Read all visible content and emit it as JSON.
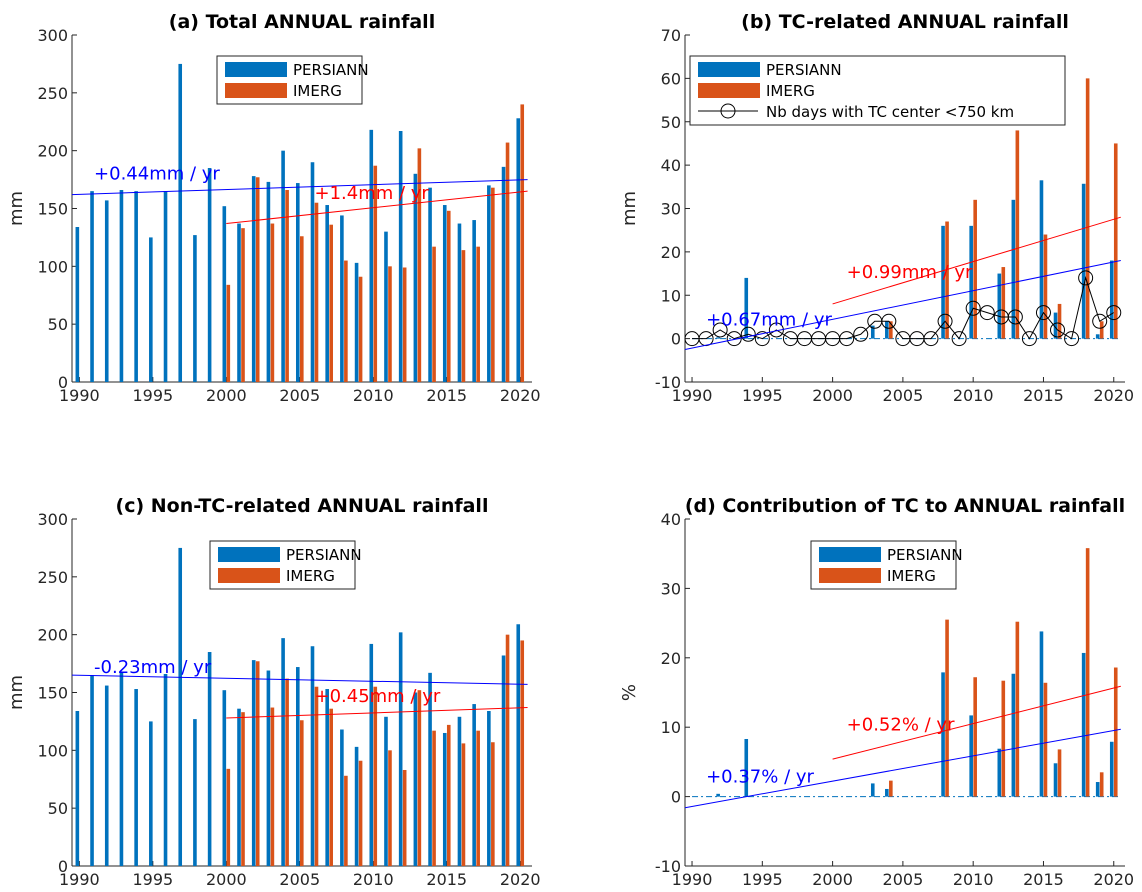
{
  "colors": {
    "persiann": "#0072bd",
    "imerg": "#d95319",
    "trend_persiann": "#0000ff",
    "trend_imerg": "#ff0000",
    "tc_days": "#000000"
  },
  "chart_data": [
    {
      "id": "a",
      "type": "bar",
      "title": "(a) Total ANNUAL rainfall",
      "ylabel": "mm",
      "xlim": [
        1989.5,
        2020.8
      ],
      "ylim": [
        0,
        300
      ],
      "xticks": [
        1990,
        1995,
        2000,
        2005,
        2010,
        2015,
        2020
      ],
      "yticks": [
        0,
        50,
        100,
        150,
        200,
        250,
        300
      ],
      "legend_position": "top-center",
      "legend": [
        "PERSIANN",
        "IMERG"
      ],
      "series": [
        {
          "name": "PERSIANN",
          "x": [
            1990,
            1991,
            1992,
            1993,
            1994,
            1995,
            1996,
            1997,
            1998,
            1999,
            2000,
            2001,
            2002,
            2003,
            2004,
            2005,
            2006,
            2007,
            2008,
            2009,
            2010,
            2011,
            2012,
            2013,
            2014,
            2015,
            2016,
            2017,
            2018,
            2019,
            2020
          ],
          "values": [
            134,
            165,
            157,
            166,
            165,
            125,
            165,
            275,
            127,
            185,
            152,
            137,
            178,
            173,
            200,
            172,
            190,
            153,
            144,
            103,
            218,
            130,
            217,
            180,
            168,
            153,
            137,
            140,
            170,
            186,
            228
          ]
        },
        {
          "name": "IMERG",
          "x": [
            2000,
            2001,
            2002,
            2003,
            2004,
            2005,
            2006,
            2007,
            2008,
            2009,
            2010,
            2011,
            2012,
            2013,
            2014,
            2015,
            2016,
            2017,
            2018,
            2019,
            2020
          ],
          "values": [
            84,
            133,
            177,
            137,
            166,
            126,
            155,
            136,
            105,
            91,
            187,
            100,
            99,
            202,
            117,
            148,
            114,
            117,
            168,
            207,
            240
          ]
        }
      ],
      "trends": [
        {
          "label": "+0.44mm / yr",
          "series": "PERSIANN",
          "x": [
            1989.5,
            2020.5
          ],
          "y": [
            162,
            175
          ],
          "label_x": 1991,
          "label_y": 175
        },
        {
          "label": "+1.4mm / yr",
          "series": "IMERG",
          "x": [
            2000,
            2020.5
          ],
          "y": [
            137,
            165
          ],
          "label_x": 2006,
          "label_y": 158
        }
      ]
    },
    {
      "id": "b",
      "type": "bar",
      "title": "(b) TC-related ANNUAL rainfall",
      "ylabel": "mm",
      "xlim": [
        1989.5,
        2020.8
      ],
      "ylim": [
        -10,
        70
      ],
      "xticks": [
        1990,
        1995,
        2000,
        2005,
        2010,
        2015,
        2020
      ],
      "yticks": [
        -10,
        0,
        10,
        20,
        30,
        40,
        50,
        60,
        70
      ],
      "legend_position": "top-left",
      "legend": [
        "PERSIANN",
        "IMERG",
        "Nb days with TC center <750 km"
      ],
      "series": [
        {
          "name": "PERSIANN",
          "x": [
            1990,
            1991,
            1992,
            1993,
            1994,
            1995,
            1996,
            1997,
            1998,
            1999,
            2000,
            2001,
            2002,
            2003,
            2004,
            2005,
            2006,
            2007,
            2008,
            2009,
            2010,
            2011,
            2012,
            2013,
            2014,
            2015,
            2016,
            2017,
            2018,
            2019,
            2020
          ],
          "values": [
            0,
            0,
            0.3,
            0,
            14,
            0,
            0,
            0,
            0,
            0,
            0,
            0,
            0,
            3,
            4,
            0,
            0,
            0,
            26,
            0,
            26,
            0,
            15,
            32,
            0,
            36.5,
            6,
            0,
            35.7,
            1,
            18
          ]
        },
        {
          "name": "IMERG",
          "x": [
            2000,
            2001,
            2002,
            2003,
            2004,
            2005,
            2006,
            2007,
            2008,
            2009,
            2010,
            2011,
            2012,
            2013,
            2014,
            2015,
            2016,
            2017,
            2018,
            2019,
            2020
          ],
          "values": [
            0,
            0,
            0,
            0,
            4,
            0,
            0,
            0,
            27,
            0,
            32,
            0,
            16.5,
            48,
            0,
            24,
            8,
            0,
            60,
            4,
            45
          ]
        },
        {
          "name": "Nb days with TC center <750 km",
          "kind": "line-marker",
          "x": [
            1990,
            1991,
            1992,
            1993,
            1994,
            1995,
            1996,
            1997,
            1998,
            1999,
            2000,
            2001,
            2002,
            2003,
            2004,
            2005,
            2006,
            2007,
            2008,
            2009,
            2010,
            2011,
            2012,
            2013,
            2014,
            2015,
            2016,
            2017,
            2018,
            2019,
            2020
          ],
          "values": [
            0,
            0,
            2,
            0,
            1,
            0,
            2,
            0,
            0,
            0,
            0,
            0,
            1,
            4,
            4,
            0,
            0,
            0,
            4,
            0,
            7,
            6,
            5,
            5,
            0,
            6,
            2,
            0,
            14,
            4,
            6
          ]
        }
      ],
      "trends": [
        {
          "label": "+0.67mm / yr",
          "series": "PERSIANN",
          "x": [
            1989.5,
            2020.5
          ],
          "y": [
            -2.5,
            18
          ],
          "label_x": 1991,
          "label_y": 3
        },
        {
          "label": "+0.99mm / yr",
          "series": "IMERG",
          "x": [
            2000,
            2020.5
          ],
          "y": [
            8,
            28
          ],
          "label_x": 2001,
          "label_y": 14
        }
      ]
    },
    {
      "id": "c",
      "type": "bar",
      "title": "(c) Non-TC-related ANNUAL rainfall",
      "ylabel": "mm",
      "xlim": [
        1989.5,
        2020.8
      ],
      "ylim": [
        0,
        300
      ],
      "xticks": [
        1990,
        1995,
        2000,
        2005,
        2010,
        2015,
        2020
      ],
      "yticks": [
        0,
        50,
        100,
        150,
        200,
        250,
        300
      ],
      "legend_position": "top-center",
      "legend": [
        "PERSIANN",
        "IMERG"
      ],
      "series": [
        {
          "name": "PERSIANN",
          "x": [
            1990,
            1991,
            1992,
            1993,
            1994,
            1995,
            1996,
            1997,
            1998,
            1999,
            2000,
            2001,
            2002,
            2003,
            2004,
            2005,
            2006,
            2007,
            2008,
            2009,
            2010,
            2011,
            2012,
            2013,
            2014,
            2015,
            2016,
            2017,
            2018,
            2019,
            2020
          ],
          "values": [
            134,
            165,
            156,
            167,
            153,
            125,
            166,
            275,
            127,
            185,
            152,
            136,
            178,
            169,
            197,
            172,
            190,
            153,
            118,
            103,
            192,
            129,
            202,
            150,
            167,
            115,
            129,
            140,
            134,
            182,
            209
          ]
        },
        {
          "name": "IMERG",
          "x": [
            2000,
            2001,
            2002,
            2003,
            2004,
            2005,
            2006,
            2007,
            2008,
            2009,
            2010,
            2011,
            2012,
            2013,
            2014,
            2015,
            2016,
            2017,
            2018,
            2019,
            2020
          ],
          "values": [
            84,
            133,
            177,
            137,
            162,
            126,
            155,
            136,
            78,
            91,
            155,
            100,
            83,
            152,
            117,
            122,
            106,
            117,
            107,
            200,
            195
          ]
        }
      ],
      "trends": [
        {
          "label": "-0.23mm / yr",
          "series": "PERSIANN",
          "x": [
            1989.5,
            2020.5
          ],
          "y": [
            165,
            157
          ],
          "label_x": 1991,
          "label_y": 167
        },
        {
          "label": "+0.45mm / yr",
          "series": "IMERG",
          "x": [
            2000,
            2020.5
          ],
          "y": [
            128,
            137
          ],
          "label_x": 2006,
          "label_y": 142
        }
      ]
    },
    {
      "id": "d",
      "type": "bar",
      "title": "(d) Contribution of TC to ANNUAL rainfall",
      "ylabel": "%",
      "xlim": [
        1989.5,
        2020.8
      ],
      "ylim": [
        -10,
        40
      ],
      "xticks": [
        1990,
        1995,
        2000,
        2005,
        2010,
        2015,
        2020
      ],
      "yticks": [
        -10,
        0,
        10,
        20,
        30,
        40
      ],
      "legend_position": "top-center",
      "legend": [
        "PERSIANN",
        "IMERG"
      ],
      "series": [
        {
          "name": "PERSIANN",
          "x": [
            1990,
            1991,
            1992,
            1993,
            1994,
            1995,
            1996,
            1997,
            1998,
            1999,
            2000,
            2001,
            2002,
            2003,
            2004,
            2005,
            2006,
            2007,
            2008,
            2009,
            2010,
            2011,
            2012,
            2013,
            2014,
            2015,
            2016,
            2017,
            2018,
            2019,
            2020
          ],
          "values": [
            0,
            0,
            0.4,
            0,
            8.3,
            0,
            0,
            0,
            0,
            0,
            0,
            0,
            0,
            1.9,
            1.1,
            0,
            0,
            0,
            17.9,
            0,
            11.7,
            0,
            6.9,
            17.7,
            0,
            23.8,
            4.8,
            0,
            20.7,
            2.1,
            7.9
          ]
        },
        {
          "name": "IMERG",
          "x": [
            2000,
            2001,
            2002,
            2003,
            2004,
            2005,
            2006,
            2007,
            2008,
            2009,
            2010,
            2011,
            2012,
            2013,
            2014,
            2015,
            2016,
            2017,
            2018,
            2019,
            2020
          ],
          "values": [
            0,
            0,
            0,
            0,
            2.3,
            0,
            0,
            0,
            25.5,
            0,
            17.2,
            0,
            16.7,
            25.2,
            0,
            16.4,
            6.8,
            0,
            35.8,
            3.5,
            18.6
          ]
        }
      ],
      "trends": [
        {
          "label": "+0.37% / yr",
          "series": "PERSIANN",
          "x": [
            1989.5,
            2020.5
          ],
          "y": [
            -1.6,
            9.7
          ],
          "label_x": 1991,
          "label_y": 2
        },
        {
          "label": "+0.52% / yr",
          "series": "IMERG",
          "x": [
            2000,
            2020.5
          ],
          "y": [
            5.4,
            15.9
          ],
          "label_x": 2001,
          "label_y": 9.5
        }
      ]
    }
  ]
}
